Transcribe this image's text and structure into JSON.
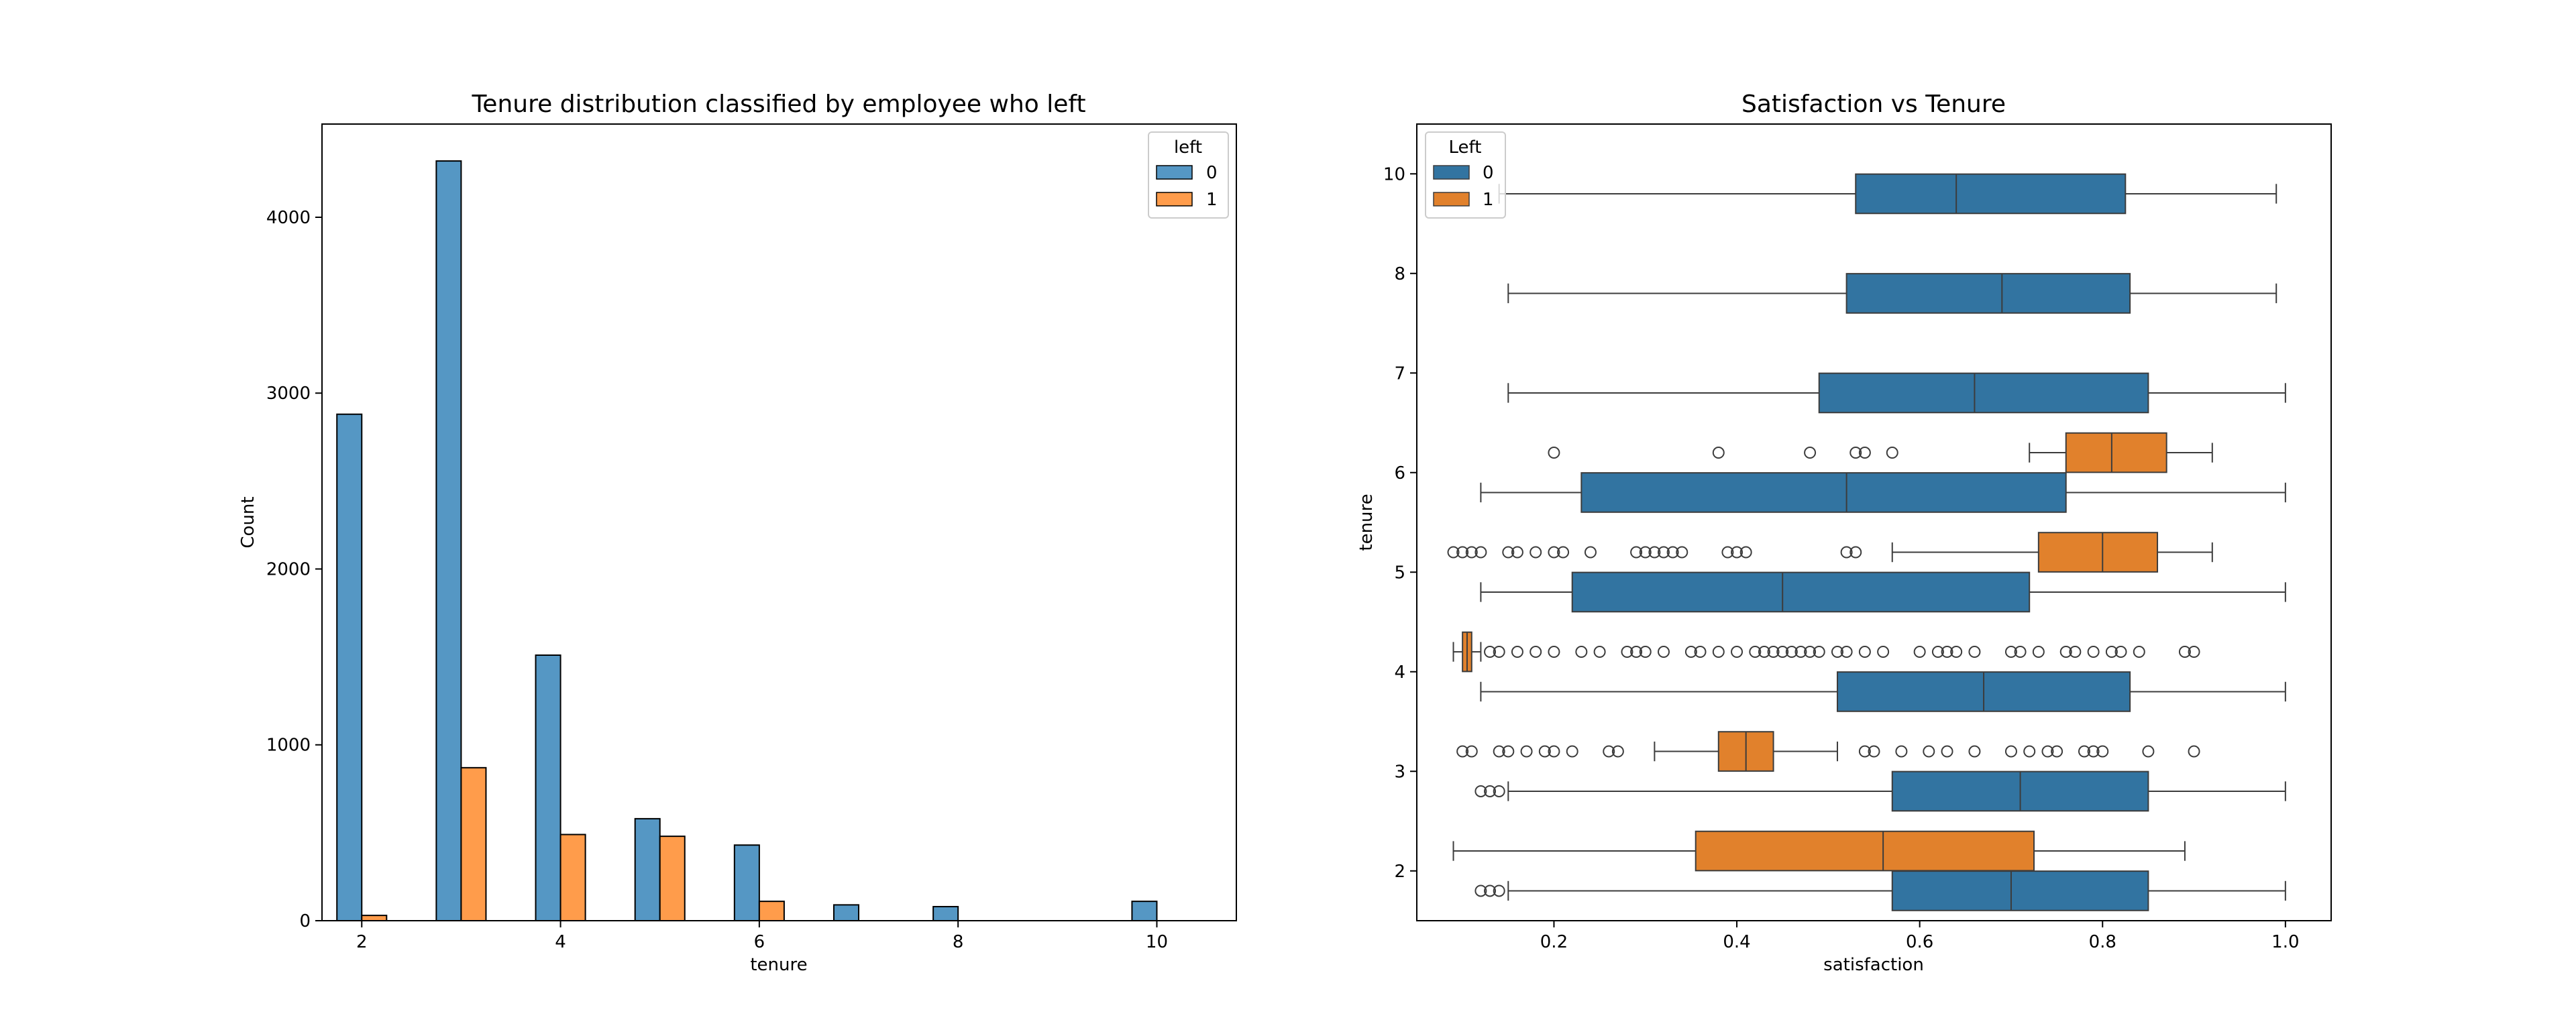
{
  "colors": {
    "left0_hist": "#5597c4",
    "left1_hist": "#ff9c4b",
    "left0_box": "#3274a1",
    "left1_box": "#e1812c",
    "edge": "#000000",
    "whisker": "#3c3c3c"
  },
  "chart_data": [
    {
      "type": "bar",
      "title": "Tenure distribution classified by employee who left",
      "xlabel": "tenure",
      "ylabel": "Count",
      "xlim": [
        1.6,
        10.8
      ],
      "ylim": [
        0,
        4530
      ],
      "xticks": [
        2,
        4,
        6,
        8,
        10
      ],
      "yticks": [
        0,
        1000,
        2000,
        3000,
        4000
      ],
      "legend": {
        "title": "left",
        "location": "upper-right",
        "entries": [
          "0",
          "1"
        ]
      },
      "categories": [
        2,
        3,
        4,
        5,
        6,
        7,
        8,
        10
      ],
      "series": [
        {
          "name": "0",
          "values": [
            2880,
            4320,
            1510,
            580,
            430,
            90,
            80,
            110
          ]
        },
        {
          "name": "1",
          "values": [
            30,
            870,
            490,
            480,
            110,
            0,
            0,
            0
          ]
        }
      ]
    },
    {
      "type": "box",
      "orientation": "horizontal",
      "title": "Satisfaction vs Tenure",
      "xlabel": "satisfaction",
      "ylabel": "tenure",
      "xlim": [
        0.05,
        1.05
      ],
      "xticks": [
        "0.2",
        "0.4",
        "0.6",
        "0.8",
        "1.0"
      ],
      "categories": [
        "10",
        "8",
        "7",
        "6",
        "5",
        "4",
        "3",
        "2"
      ],
      "legend": {
        "title": "Left",
        "location": "upper-left",
        "entries": [
          "0",
          "1"
        ]
      },
      "series": [
        {
          "name": "0",
          "boxes": [
            {
              "category": "10",
              "whislo": 0.14,
              "q1": 0.53,
              "med": 0.64,
              "q3": 0.825,
              "whishi": 0.99,
              "fliers": []
            },
            {
              "category": "8",
              "whislo": 0.15,
              "q1": 0.52,
              "med": 0.69,
              "q3": 0.83,
              "whishi": 0.99,
              "fliers": []
            },
            {
              "category": "7",
              "whislo": 0.15,
              "q1": 0.49,
              "med": 0.66,
              "q3": 0.85,
              "whishi": 1.0,
              "fliers": []
            },
            {
              "category": "6",
              "whislo": 0.12,
              "q1": 0.23,
              "med": 0.52,
              "q3": 0.76,
              "whishi": 1.0,
              "fliers": []
            },
            {
              "category": "5",
              "whislo": 0.12,
              "q1": 0.22,
              "med": 0.45,
              "q3": 0.72,
              "whishi": 1.0,
              "fliers": []
            },
            {
              "category": "4",
              "whislo": 0.12,
              "q1": 0.51,
              "med": 0.67,
              "q3": 0.83,
              "whishi": 1.0,
              "fliers": []
            },
            {
              "category": "3",
              "whislo": 0.15,
              "q1": 0.57,
              "med": 0.71,
              "q3": 0.85,
              "whishi": 1.0,
              "fliers": [
                0.12,
                0.13,
                0.14
              ]
            },
            {
              "category": "2",
              "whislo": 0.15,
              "q1": 0.57,
              "med": 0.7,
              "q3": 0.85,
              "whishi": 1.0,
              "fliers": [
                0.12,
                0.13,
                0.14
              ]
            }
          ]
        },
        {
          "name": "1",
          "boxes": [
            {
              "category": "6",
              "whislo": 0.72,
              "q1": 0.76,
              "med": 0.81,
              "q3": 0.87,
              "whishi": 0.92,
              "fliers": [
                0.2,
                0.38,
                0.48,
                0.53,
                0.54,
                0.57
              ]
            },
            {
              "category": "5",
              "whislo": 0.57,
              "q1": 0.73,
              "med": 0.8,
              "q3": 0.86,
              "whishi": 0.92,
              "fliers": [
                0.09,
                0.1,
                0.11,
                0.12,
                0.15,
                0.16,
                0.18,
                0.2,
                0.21,
                0.24,
                0.29,
                0.3,
                0.31,
                0.32,
                0.33,
                0.34,
                0.39,
                0.4,
                0.41,
                0.52,
                0.53
              ]
            },
            {
              "category": "4",
              "whislo": 0.09,
              "q1": 0.1,
              "med": 0.105,
              "q3": 0.11,
              "whishi": 0.12,
              "fliers": [
                0.13,
                0.14,
                0.16,
                0.18,
                0.2,
                0.23,
                0.25,
                0.28,
                0.29,
                0.3,
                0.32,
                0.35,
                0.36,
                0.38,
                0.4,
                0.42,
                0.43,
                0.44,
                0.45,
                0.46,
                0.47,
                0.48,
                0.49,
                0.51,
                0.52,
                0.54,
                0.56,
                0.6,
                0.62,
                0.63,
                0.64,
                0.66,
                0.7,
                0.71,
                0.73,
                0.76,
                0.77,
                0.79,
                0.81,
                0.82,
                0.84,
                0.89,
                0.9
              ]
            },
            {
              "category": "3",
              "whislo": 0.31,
              "q1": 0.38,
              "med": 0.41,
              "q3": 0.44,
              "whishi": 0.51,
              "fliers": [
                0.1,
                0.11,
                0.14,
                0.15,
                0.17,
                0.19,
                0.2,
                0.22,
                0.26,
                0.27,
                0.54,
                0.55,
                0.58,
                0.61,
                0.63,
                0.66,
                0.7,
                0.72,
                0.74,
                0.75,
                0.78,
                0.79,
                0.8,
                0.85,
                0.9
              ]
            },
            {
              "category": "2",
              "whislo": 0.09,
              "q1": 0.355,
              "med": 0.56,
              "q3": 0.725,
              "whishi": 0.89,
              "fliers": []
            }
          ]
        }
      ]
    }
  ]
}
